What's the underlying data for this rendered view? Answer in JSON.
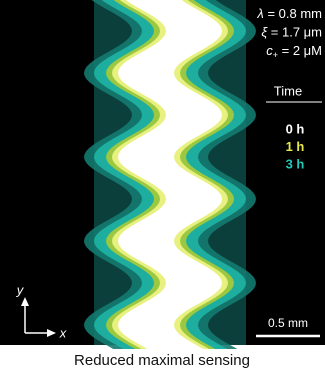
{
  "params": [
    {
      "symbol": "λ",
      "value": " = 0.8 mm"
    },
    {
      "symbol": "ξ",
      "value": " = 1.7 μm"
    },
    {
      "symbol": "c",
      "subscript": "+",
      "value": " = 2 μM"
    }
  ],
  "legend": {
    "title": "Time",
    "items": [
      {
        "label": "0 h",
        "color": "#ffffff"
      },
      {
        "label": "1 h",
        "color": "#e8e84a"
      },
      {
        "label": "3 h",
        "color": "#22c8b8"
      }
    ]
  },
  "axes": {
    "y": "y",
    "x": "x"
  },
  "scale_bar": "0.5 mm",
  "caption": "Reduced maximal sensing"
}
